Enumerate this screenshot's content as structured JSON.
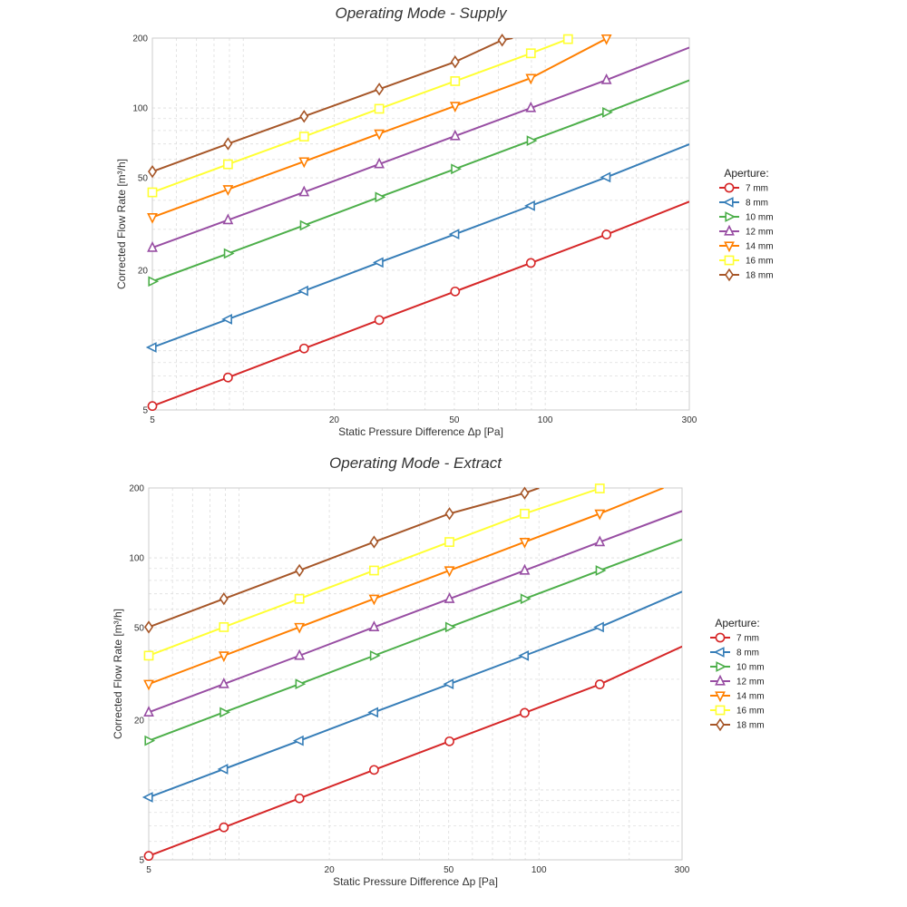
{
  "legend_title": "Aperture:",
  "chart_data": [
    {
      "type": "line",
      "title": "Operating Mode - Supply",
      "xlabel": "Static Pressure Difference Δp [Pa]",
      "ylabel": "Corrected Flow Rate [m³/h]",
      "xscale": "log",
      "yscale": "log",
      "xlim": [
        5,
        300
      ],
      "ylim": [
        5,
        200
      ],
      "xticks": [
        5,
        20,
        50,
        100,
        300
      ],
      "yticks": [
        5,
        20,
        50,
        100,
        200
      ],
      "grid": true,
      "legend": "right",
      "series": [
        {
          "name": "7 mm",
          "marker": "circle",
          "color": "#d62728",
          "x": [
            5,
            8.9,
            15.9,
            28.2,
            50.3,
            89.6,
            159.5
          ],
          "y": [
            5.2,
            6.9,
            9.2,
            12.2,
            16.2,
            21.5,
            28.5
          ],
          "x_end": 300,
          "y_end": 39.5
        },
        {
          "name": "8 mm",
          "marker": "triangle-left",
          "color": "#377eb8",
          "x": [
            5,
            8.9,
            15.9,
            28.2,
            50.3,
            89.6,
            159.5
          ],
          "y": [
            9.3,
            12.3,
            16.3,
            21.6,
            28.6,
            37.9,
            50.3
          ],
          "x_end": 300,
          "y_end": 69.8
        },
        {
          "name": "10 mm",
          "marker": "triangle-right",
          "color": "#4daf4a",
          "x": [
            5,
            8.9,
            15.9,
            28.2,
            50.3,
            89.6,
            159.5
          ],
          "y": [
            17.9,
            23.6,
            31.2,
            41.3,
            54.6,
            72.3,
            95.7
          ],
          "x_end": 300,
          "y_end": 131.5
        },
        {
          "name": "12 mm",
          "marker": "triangle-up",
          "color": "#984ea3",
          "x": [
            5,
            8.9,
            15.9,
            28.2,
            50.3,
            89.6,
            159.5
          ],
          "y": [
            25.0,
            32.9,
            43.4,
            57.3,
            75.7,
            100,
            132
          ],
          "x_end": 300,
          "y_end": 182
        },
        {
          "name": "14 mm",
          "marker": "triangle-down",
          "color": "#ff7f00",
          "x": [
            5,
            8.9,
            15.9,
            28.2,
            50.3,
            89.6,
            159.5
          ],
          "y": [
            33.8,
            44.6,
            58.8,
            77.5,
            102,
            134.5,
            199
          ],
          "x_end": 159.5,
          "y_end": 199
        },
        {
          "name": "16 mm",
          "marker": "square",
          "color": "#ffff33",
          "x": [
            5,
            8.9,
            15.9,
            28.2,
            50.3,
            89.6,
            119
          ],
          "y": [
            43.3,
            57.2,
            75.3,
            99.2,
            130.5,
            172,
            198
          ],
          "x_end": 119,
          "y_end": 198
        },
        {
          "name": "18 mm",
          "marker": "diamond",
          "color": "#a65628",
          "x": [
            5,
            8.9,
            15.9,
            28.2,
            50.3,
            72
          ],
          "y": [
            53.2,
            70.1,
            92.0,
            120.5,
            158,
            196
          ],
          "x_end": 78,
          "y_end": 200
        }
      ]
    },
    {
      "type": "line",
      "title": "Operating Mode - Extract",
      "xlabel": "Static Pressure Difference Δp [Pa]",
      "ylabel": "Corrected Flow Rate [m³/h]",
      "xscale": "log",
      "yscale": "log",
      "xlim": [
        5,
        300
      ],
      "ylim": [
        5,
        200
      ],
      "xticks": [
        5,
        20,
        50,
        100,
        300
      ],
      "yticks": [
        5,
        20,
        50,
        100,
        200
      ],
      "grid": true,
      "legend": "right",
      "series": [
        {
          "name": "7 mm",
          "marker": "circle",
          "color": "#d62728",
          "x": [
            5,
            8.9,
            15.9,
            28.2,
            50.3,
            89.6,
            159.5
          ],
          "y": [
            5.2,
            6.9,
            9.2,
            12.2,
            16.2,
            21.5,
            28.5
          ],
          "x_end": 300,
          "y_end": 41.5
        },
        {
          "name": "8 mm",
          "marker": "triangle-left",
          "color": "#377eb8",
          "x": [
            5,
            8.9,
            15.9,
            28.2,
            50.3,
            89.6,
            159.5
          ],
          "y": [
            9.3,
            12.3,
            16.3,
            21.6,
            28.6,
            37.9,
            50.3
          ],
          "x_end": 300,
          "y_end": 71.5
        },
        {
          "name": "10 mm",
          "marker": "triangle-right",
          "color": "#4daf4a",
          "x": [
            5,
            8.9,
            15.9,
            28.2,
            50.3,
            89.6,
            159.5
          ],
          "y": [
            16.3,
            21.6,
            28.6,
            37.9,
            50.3,
            66.6,
            88.2
          ],
          "x_end": 300,
          "y_end": 120
        },
        {
          "name": "12 mm",
          "marker": "triangle-up",
          "color": "#984ea3",
          "x": [
            5,
            8.9,
            15.9,
            28.2,
            50.3,
            89.6,
            159.5
          ],
          "y": [
            21.6,
            28.6,
            37.9,
            50.3,
            66.6,
            88.2,
            117
          ],
          "x_end": 300,
          "y_end": 159
        },
        {
          "name": "14 mm",
          "marker": "triangle-down",
          "color": "#ff7f00",
          "x": [
            5,
            8.9,
            15.9,
            28.2,
            50.3,
            89.6,
            159.5
          ],
          "y": [
            28.6,
            37.9,
            50.3,
            66.6,
            88.2,
            117,
            155
          ],
          "x_end": 260,
          "y_end": 200
        },
        {
          "name": "16 mm",
          "marker": "square",
          "color": "#ffff33",
          "x": [
            5,
            8.9,
            15.9,
            28.2,
            50.3,
            89.6,
            159.5
          ],
          "y": [
            37.9,
            50.3,
            66.6,
            88.2,
            117,
            155,
            199
          ],
          "x_end": 159.5,
          "y_end": 199
        },
        {
          "name": "18 mm",
          "marker": "diamond",
          "color": "#a65628",
          "x": [
            5,
            8.9,
            15.9,
            28.2,
            50.3,
            89.6
          ],
          "y": [
            50.3,
            66.6,
            88.2,
            117,
            155,
            190
          ],
          "x_end": 100,
          "y_end": 200
        }
      ]
    }
  ]
}
